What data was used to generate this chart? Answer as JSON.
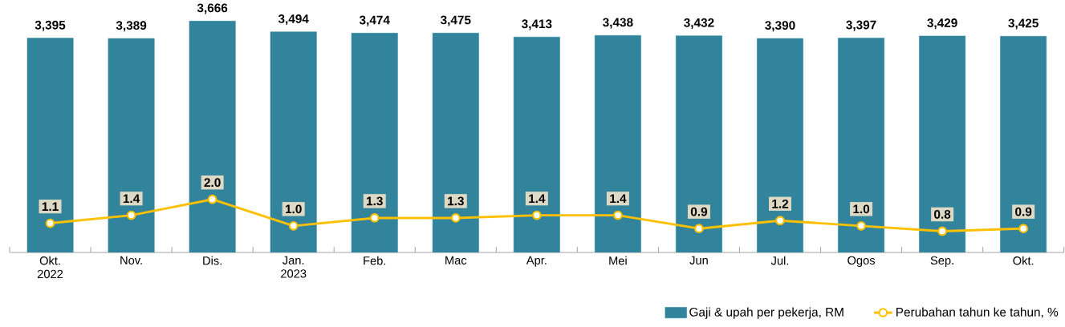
{
  "chart_data": {
    "type": "bar",
    "categories": [
      "Okt. 2022",
      "Nov.",
      "Dis.",
      "Jan. 2023",
      "Feb.",
      "Mac",
      "Apr.",
      "Mei",
      "Jun",
      "Jul.",
      "Ogos",
      "Sep.",
      "Okt."
    ],
    "series": [
      {
        "name": "Gaji & upah per pekerja, RM",
        "color": "#31849b",
        "values": [
          3395,
          3389,
          3666,
          3494,
          3474,
          3475,
          3413,
          3438,
          3432,
          3390,
          3397,
          3429,
          3425
        ],
        "value_labels": [
          "3,395",
          "3,389",
          "3,666",
          "3,494",
          "3,474",
          "3,475",
          "3,413",
          "3,438",
          "3,432",
          "3,390",
          "3,397",
          "3,429",
          "3,425"
        ]
      },
      {
        "name": "Perubahan tahun ke tahun, %",
        "type": "line",
        "axis": "y2",
        "color": "#ffc000",
        "values": [
          1.1,
          1.4,
          2.0,
          1.0,
          1.3,
          1.3,
          1.4,
          1.4,
          0.9,
          1.2,
          1.0,
          0.8,
          0.9
        ],
        "value_labels": [
          "1.1",
          "1.4",
          "2.0",
          "1.0",
          "1.3",
          "1.3",
          "1.4",
          "1.4",
          "0.9",
          "1.2",
          "1.0",
          "0.8",
          "0.9"
        ]
      }
    ],
    "tick_labels": "x",
    "legend": "bottom right",
    "marker": "circle"
  }
}
